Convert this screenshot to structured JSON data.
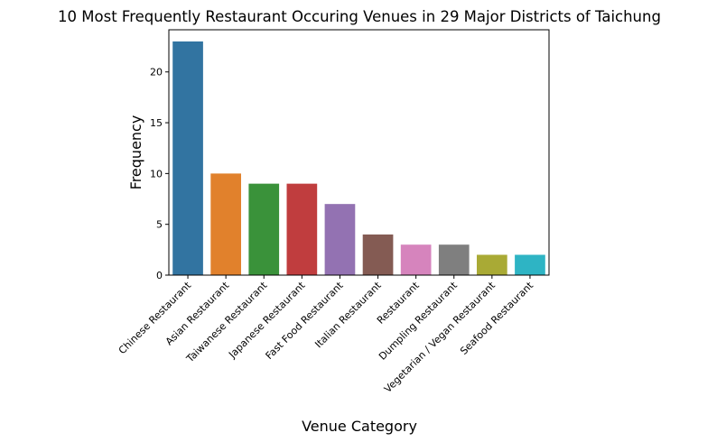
{
  "chart_data": {
    "type": "bar",
    "title": "10 Most Frequently Restaurant Occuring Venues in 29 Major Districts of Taichung",
    "xlabel": "Venue Category",
    "ylabel": "Frequency",
    "categories": [
      "Chinese Restaurant",
      "Asian Restaurant",
      "Taiwanese Restaurant",
      "Japanese Restaurant",
      "Fast Food Restaurant",
      "Italian Restaurant",
      "Restaurant",
      "Dumpling Restaurant",
      "Vegetarian / Vegan Restaurant",
      "Seafood Restaurant"
    ],
    "values": [
      23,
      10,
      9,
      9,
      7,
      4,
      3,
      3,
      2,
      2
    ],
    "colors": [
      "#3274a1",
      "#e1812c",
      "#3a923a",
      "#c03d3e",
      "#9372b2",
      "#845b53",
      "#d684bd",
      "#7f7f7f",
      "#a9aa35",
      "#2eb4c4"
    ],
    "ylim": [
      0,
      24.15
    ],
    "yticks": [
      0,
      5,
      10,
      15,
      20
    ],
    "grid": false,
    "legend": "none"
  }
}
